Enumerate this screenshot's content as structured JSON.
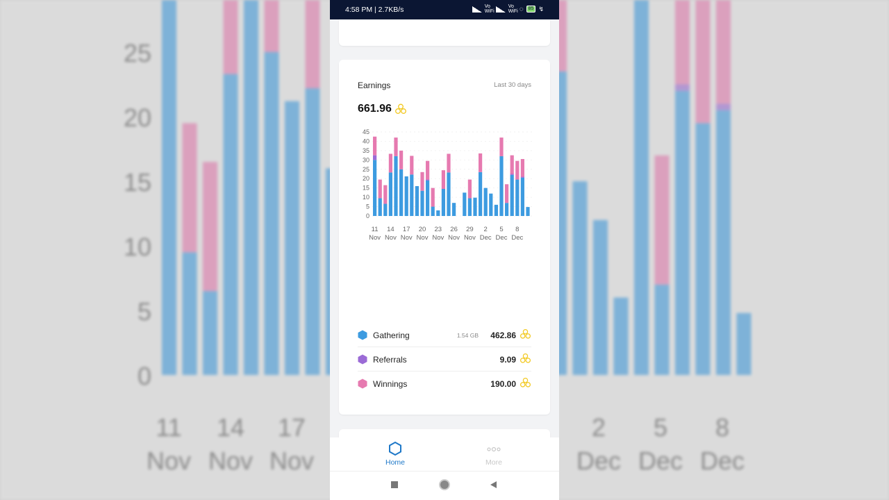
{
  "status_bar": {
    "time": "4:58 PM | 2.7KB/s",
    "network_label_1": "Vo WiFi",
    "network_label_2": "Vo WiFi",
    "battery": "85",
    "icons": [
      "alarm-icon",
      "shield-icon",
      "signal-icon",
      "wifi-icon",
      "battery-icon",
      "charging-icon"
    ]
  },
  "earnings": {
    "title": "Earnings",
    "range": "Last 30 days",
    "total": "661.96",
    "currency_icon": "honeycomb-coin-icon"
  },
  "chart_data": {
    "type": "bar",
    "stacked": true,
    "ylim": [
      0,
      45
    ],
    "yticks": [
      "0",
      "5",
      "10",
      "15",
      "20",
      "25",
      "30",
      "35",
      "40",
      "45"
    ],
    "xtick_labels": [
      {
        "day": "11",
        "month": "Nov",
        "index": 0
      },
      {
        "day": "14",
        "month": "Nov",
        "index": 3
      },
      {
        "day": "17",
        "month": "Nov",
        "index": 6
      },
      {
        "day": "20",
        "month": "Nov",
        "index": 9
      },
      {
        "day": "23",
        "month": "Nov",
        "index": 12
      },
      {
        "day": "26",
        "month": "Nov",
        "index": 15
      },
      {
        "day": "29",
        "month": "Nov",
        "index": 18
      },
      {
        "day": "2",
        "month": "Dec",
        "index": 21
      },
      {
        "day": "5",
        "month": "Dec",
        "index": 24
      },
      {
        "day": "8",
        "month": "Dec",
        "index": 27
      }
    ],
    "series": [
      {
        "name": "Gathering",
        "color": "#3d9be0",
        "values": [
          30,
          9.5,
          6.5,
          23.3,
          32,
          25,
          21.2,
          22.2,
          16,
          13.5,
          19,
          5,
          3,
          14.5,
          23.3,
          7,
          0,
          12.5,
          9.5,
          9.8,
          23.5,
          15,
          12,
          6,
          32,
          7,
          22,
          19.5,
          20.5,
          4.8
        ]
      },
      {
        "name": "Referrals",
        "color": "#9b6bd6",
        "values": [
          2.5,
          0,
          0,
          0,
          0,
          0,
          0,
          0,
          0,
          0,
          0.5,
          0,
          0,
          0,
          0,
          0,
          0,
          0,
          0,
          0,
          0,
          0,
          0,
          0,
          0,
          0,
          0.5,
          0,
          0.5,
          0
        ]
      },
      {
        "name": "Winnings",
        "color": "#e67ab0",
        "values": [
          10,
          10,
          10,
          10,
          10,
          10,
          0,
          10,
          0,
          10,
          10,
          10,
          0,
          10,
          10,
          0,
          0,
          0,
          10,
          0,
          10,
          0,
          0,
          0,
          10,
          10,
          10,
          10,
          9.5,
          0
        ]
      }
    ]
  },
  "legend": [
    {
      "name": "Gathering",
      "value": "462.86",
      "sub": "1.54 GB",
      "color": "#3d9be0"
    },
    {
      "name": "Referrals",
      "value": "9.09",
      "sub": "",
      "color": "#9b6bd6"
    },
    {
      "name": "Winnings",
      "value": "190.00",
      "sub": "",
      "color": "#e67ab0"
    }
  ],
  "nav": {
    "home_label": "Home",
    "more_label": "More",
    "home_icon": "hexagon-icon",
    "more_icon": "dots-icon"
  },
  "system_nav": {
    "icons": [
      "square-recents-icon",
      "circle-home-icon",
      "triangle-back-icon"
    ]
  },
  "background_zoom": {
    "yticks": [
      "0",
      "5",
      "10",
      "15",
      "20",
      "25"
    ],
    "left_xticks": [
      {
        "day": "11",
        "month": "Nov"
      },
      {
        "day": "14",
        "month": "Nov"
      },
      {
        "day": "17",
        "month": "Nov"
      }
    ],
    "right_xticks": [
      {
        "day": "2",
        "month": "Dec"
      },
      {
        "day": "5",
        "month": "Dec"
      },
      {
        "day": "8",
        "month": "Dec"
      }
    ]
  }
}
